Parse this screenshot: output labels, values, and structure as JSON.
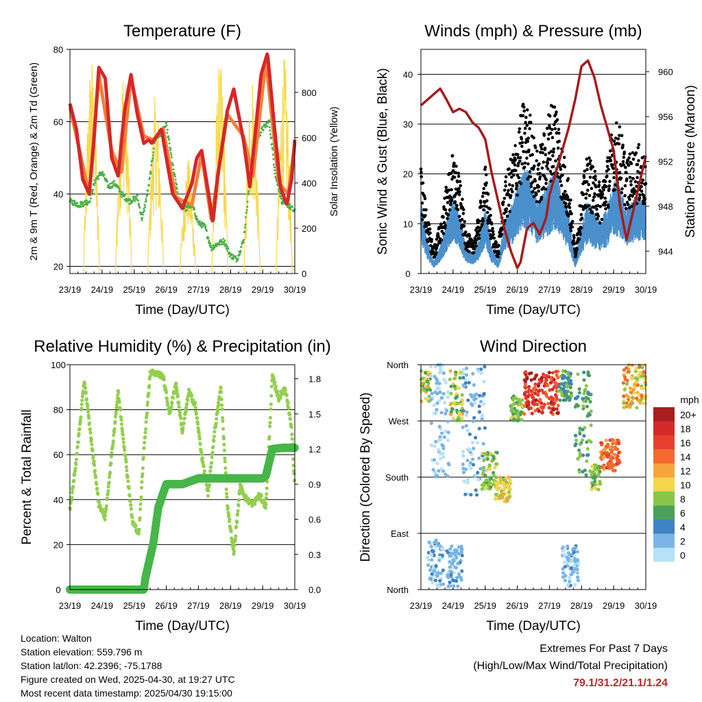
{
  "x_ticks": [
    "23/19",
    "24/19",
    "25/19",
    "26/19",
    "27/19",
    "28/19",
    "29/19",
    "30/19"
  ],
  "x_label": "Time (Day/UTC)",
  "colors": {
    "t2m": "#d62728",
    "t9m": "#f0813a",
    "td": "#4db04a",
    "solar": "#f6d94f",
    "wind": "#4a90cc",
    "gust": "#000000",
    "pressure": "#a51c1c",
    "rh": "#92cf4e",
    "precip": "#47b648"
  },
  "chart_data": [
    {
      "type": "line",
      "title": "Temperature (F)",
      "xlabel": "Time (Day/UTC)",
      "ylabel": "2m & 9m T (Red, Orange) & 2m Td (Green)",
      "y2label": "Solar Insolation (Yellow)",
      "ylim": [
        18,
        80
      ],
      "y2lim": [
        0,
        990
      ],
      "yticks": [
        20,
        40,
        60,
        80
      ],
      "y2ticks": [
        0,
        200,
        400,
        600,
        800
      ],
      "x_day_range": [
        23,
        30
      ],
      "grid": "horizontal",
      "series": [
        {
          "key": "t2m",
          "x": [
            23,
            23.2,
            23.4,
            23.6,
            23.75,
            23.9,
            24.1,
            24.3,
            24.5,
            24.7,
            24.9,
            25.1,
            25.3,
            25.45,
            25.55,
            25.7,
            25.85,
            26.0,
            26.2,
            26.5,
            26.8,
            26.95,
            27.1,
            27.3,
            27.45,
            27.6,
            27.9,
            28.1,
            28.4,
            28.6,
            28.75,
            28.95,
            29.15,
            29.35,
            29.55,
            29.75,
            29.9,
            30.0
          ],
          "y": [
            65,
            58,
            44,
            40,
            55,
            75,
            72,
            50,
            45,
            63,
            73,
            62,
            54,
            55,
            54,
            56,
            58,
            50,
            40,
            36,
            43,
            50,
            52,
            41,
            32,
            45,
            63,
            69,
            55,
            42,
            55,
            73,
            79,
            60,
            42,
            37,
            44,
            55
          ]
        },
        {
          "key": "t9m",
          "x": [
            23,
            23.3,
            23.6,
            23.9,
            24.3,
            24.6,
            24.9,
            25.3,
            25.6,
            25.9,
            26.3,
            26.8,
            27.1,
            27.4,
            27.9,
            28.4,
            28.7,
            29.1,
            29.5,
            29.8,
            30.0
          ],
          "y": [
            64,
            52,
            40,
            73,
            52,
            46,
            72,
            56,
            55,
            58,
            39,
            37,
            51,
            33,
            62,
            56,
            45,
            77,
            43,
            40,
            54
          ]
        },
        {
          "key": "td",
          "x": [
            23,
            23.3,
            23.6,
            23.8,
            24.0,
            24.2,
            24.4,
            24.6,
            24.85,
            25.1,
            25.25,
            25.45,
            25.65,
            25.85,
            26.0,
            26.2,
            26.4,
            26.6,
            26.8,
            27.0,
            27.2,
            27.4,
            27.55,
            27.8,
            28.0,
            28.2,
            28.4,
            28.6,
            28.8,
            29.0,
            29.2,
            29.4,
            29.6,
            29.8,
            30.0
          ],
          "y": [
            38,
            37,
            38,
            44,
            46,
            42,
            43,
            40,
            38,
            39,
            33,
            42,
            55,
            57,
            59,
            48,
            38,
            36,
            37,
            32,
            31,
            25,
            26,
            27,
            23,
            22,
            27,
            44,
            55,
            58,
            60,
            45,
            38,
            37,
            35
          ]
        },
        {
          "key": "solar",
          "peaks": [
            {
              "x": 23.7,
              "y": 980
            },
            {
              "x": 24.7,
              "y": 940
            },
            {
              "x": 25.7,
              "y": 790
            },
            {
              "x": 26.7,
              "y": 520
            },
            {
              "x": 27.7,
              "y": 940
            },
            {
              "x": 28.7,
              "y": 890
            },
            {
              "x": 29.7,
              "y": 960
            }
          ]
        }
      ]
    },
    {
      "type": "scatter",
      "title": "Winds (mph) & Pressure (mb)",
      "xlabel": "Time (Day/UTC)",
      "ylabel": "Sonic Wind & Gust (Blue, Black)",
      "y2label": "Station Pressure (Maroon)",
      "ylim": [
        0,
        45
      ],
      "y2lim": [
        942,
        962
      ],
      "yticks": [
        0,
        10,
        20,
        30,
        40
      ],
      "y2ticks": [
        944,
        948,
        952,
        956,
        960
      ],
      "x_day_range": [
        23,
        30
      ],
      "grid": "horizontal",
      "series": [
        {
          "key": "wind",
          "x": [
            23,
            23.2,
            23.4,
            23.6,
            23.8,
            24.0,
            24.2,
            24.4,
            24.6,
            24.8,
            25.0,
            25.2,
            25.4,
            25.6,
            25.8,
            26.0,
            26.2,
            26.4,
            26.6,
            26.8,
            27.0,
            27.2,
            27.4,
            27.6,
            27.8,
            28.0,
            28.2,
            28.4,
            28.6,
            28.8,
            29.0,
            29.2,
            29.4,
            29.6,
            29.8,
            30.0
          ],
          "y": [
            11,
            5,
            2,
            4,
            8,
            12,
            9,
            4,
            3,
            5,
            10,
            4,
            2,
            8,
            10,
            13,
            16,
            15,
            11,
            12,
            14,
            16,
            12,
            9,
            2,
            7,
            11,
            9,
            8,
            10,
            14,
            13,
            10,
            11,
            12,
            11
          ]
        },
        {
          "key": "gust",
          "x": [
            23,
            23.2,
            23.4,
            23.6,
            23.8,
            24.0,
            24.2,
            24.4,
            24.6,
            24.8,
            25.0,
            25.2,
            25.4,
            25.6,
            25.8,
            26.0,
            26.2,
            26.4,
            26.6,
            26.8,
            27.0,
            27.2,
            27.4,
            27.6,
            27.8,
            28.0,
            28.2,
            28.4,
            28.6,
            28.8,
            29.0,
            29.2,
            29.4,
            29.6,
            29.8,
            30.0
          ],
          "y": [
            17,
            9,
            4,
            8,
            14,
            19,
            15,
            7,
            5,
            9,
            17,
            8,
            4,
            14,
            18,
            22,
            27,
            25,
            19,
            21,
            26,
            28,
            20,
            15,
            4,
            13,
            19,
            16,
            14,
            18,
            24,
            23,
            18,
            19,
            20,
            18
          ]
        },
        {
          "key": "pressure",
          "x": [
            23,
            23.2,
            23.4,
            23.6,
            23.8,
            24.0,
            24.2,
            24.4,
            24.6,
            24.8,
            25.0,
            25.2,
            25.4,
            25.6,
            25.8,
            26.0,
            26.1,
            26.3,
            26.5,
            26.7,
            26.9,
            27.0,
            27.2,
            27.4,
            27.6,
            27.8,
            28.0,
            28.2,
            28.4,
            28.6,
            28.8,
            29.0,
            29.2,
            29.4,
            29.6,
            29.8,
            30.0
          ],
          "y": [
            957.0,
            957.5,
            958.0,
            958.5,
            957.5,
            956.4,
            956.7,
            956.4,
            955.5,
            955.0,
            954.0,
            951.0,
            948.5,
            946.0,
            944.0,
            942.5,
            943.0,
            946.0,
            946.5,
            945.5,
            947.0,
            949.0,
            951.0,
            953.0,
            955.0,
            957.5,
            960.5,
            961.0,
            959.5,
            957.0,
            955.0,
            953.0,
            948.0,
            945.0,
            947.5,
            950.0,
            952.5
          ]
        }
      ]
    },
    {
      "type": "line",
      "title": "Relative Humidity (%) & Precipitation (in)",
      "xlabel": "Time (Day/UTC)",
      "ylabel": "Percent & Total Rainfall",
      "ylim": [
        0,
        100
      ],
      "y2lim": [
        0,
        1.92
      ],
      "yticks": [
        0,
        20,
        40,
        60,
        80,
        100
      ],
      "y2ticks": [
        "0.0",
        "0.3",
        "0.6",
        "0.9",
        "1.2",
        "1.5",
        "1.8"
      ],
      "x_day_range": [
        23,
        30
      ],
      "grid": "horizontal",
      "series": [
        {
          "key": "rh",
          "x": [
            23,
            23.2,
            23.45,
            23.7,
            23.9,
            24.1,
            24.3,
            24.5,
            24.75,
            24.95,
            25.15,
            25.3,
            25.5,
            25.7,
            25.9,
            26.1,
            26.3,
            26.5,
            26.7,
            26.9,
            27.1,
            27.3,
            27.5,
            27.7,
            27.9,
            28.1,
            28.3,
            28.5,
            28.7,
            28.9,
            29.1,
            29.3,
            29.5,
            29.7,
            29.9,
            30.0
          ],
          "y": [
            35,
            58,
            93,
            62,
            38,
            32,
            60,
            88,
            56,
            30,
            25,
            62,
            97,
            96,
            95,
            78,
            92,
            70,
            88,
            82,
            60,
            42,
            70,
            90,
            38,
            16,
            46,
            40,
            38,
            42,
            37,
            95,
            85,
            90,
            72,
            45
          ]
        },
        {
          "key": "precip",
          "x": [
            23,
            25.3,
            25.35,
            25.6,
            25.75,
            25.85,
            26.0,
            26.5,
            26.8,
            27.0,
            29.0,
            29.1,
            29.3,
            29.6,
            30.0
          ],
          "y": [
            0,
            0,
            0.1,
            0.4,
            0.7,
            0.78,
            0.9,
            0.9,
            0.93,
            0.95,
            0.95,
            0.97,
            1.2,
            1.21,
            1.21
          ]
        }
      ]
    },
    {
      "type": "scatter",
      "title": "Wind Direction",
      "xlabel": "Time (Day/UTC)",
      "ylabel": "Direction (Colored By Speed)",
      "ylim": [
        0,
        360
      ],
      "yticks": [
        "North",
        "East",
        "South",
        "West",
        "North"
      ],
      "x_day_range": [
        23,
        30
      ],
      "grid": "horizontal",
      "legend": {
        "title": "mph",
        "position": "right",
        "labels": [
          "20+",
          "18",
          "16",
          "14",
          "12",
          "10",
          "8",
          "6",
          "4",
          "2",
          "0"
        ],
        "colors": [
          "#a71d20",
          "#d42a2a",
          "#e8402e",
          "#f26a2f",
          "#f6a53d",
          "#f3d64c",
          "#8ac648",
          "#4aa05a",
          "#3e83c4",
          "#7ab5e6",
          "#b7e1f7"
        ]
      },
      "clusters": [
        {
          "x": [
            23.0,
            23.3
          ],
          "dir": [
            300,
            350
          ],
          "speed": [
            6,
            12
          ]
        },
        {
          "x": [
            23.3,
            23.9
          ],
          "dir": [
            180,
            360
          ],
          "speed": [
            0,
            2
          ]
        },
        {
          "x": [
            23.2,
            23.7
          ],
          "dir": [
            5,
            80
          ],
          "speed": [
            0,
            4
          ]
        },
        {
          "x": [
            23.9,
            24.3
          ],
          "dir": [
            270,
            350
          ],
          "speed": [
            6,
            12
          ]
        },
        {
          "x": [
            23.8,
            24.3
          ],
          "dir": [
            5,
            70
          ],
          "speed": [
            0,
            4
          ]
        },
        {
          "x": [
            24.3,
            25.0
          ],
          "dir": [
            150,
            360
          ],
          "speed": [
            0,
            4
          ]
        },
        {
          "x": [
            24.9,
            25.4
          ],
          "dir": [
            160,
            220
          ],
          "speed": [
            6,
            10
          ]
        },
        {
          "x": [
            25.3,
            25.8
          ],
          "dir": [
            140,
            180
          ],
          "speed": [
            8,
            12
          ]
        },
        {
          "x": [
            25.8,
            26.2
          ],
          "dir": [
            270,
            310
          ],
          "speed": [
            6,
            10
          ]
        },
        {
          "x": [
            26.2,
            27.3
          ],
          "dir": [
            280,
            350
          ],
          "speed": [
            14,
            20
          ]
        },
        {
          "x": [
            27.3,
            27.7
          ],
          "dir": [
            300,
            350
          ],
          "speed": [
            4,
            8
          ]
        },
        {
          "x": [
            27.4,
            27.9
          ],
          "dir": [
            5,
            70
          ],
          "speed": [
            0,
            4
          ]
        },
        {
          "x": [
            27.8,
            28.3
          ],
          "dir": [
            180,
            350
          ],
          "speed": [
            4,
            8
          ]
        },
        {
          "x": [
            28.3,
            28.6
          ],
          "dir": [
            160,
            200
          ],
          "speed": [
            6,
            10
          ]
        },
        {
          "x": [
            28.6,
            29.2
          ],
          "dir": [
            190,
            240
          ],
          "speed": [
            12,
            16
          ]
        },
        {
          "x": [
            29.3,
            30.0
          ],
          "dir": [
            290,
            360
          ],
          "speed": [
            8,
            14
          ]
        }
      ]
    }
  ],
  "info": {
    "location": "Location: Walton",
    "elevation": "Station elevation: 559.796 m",
    "latlon": "Station lat/lon: 42.2396; -75.1788",
    "created": "Figure created on Wed, 2025-04-30, at 19:27 UTC",
    "recent": "Most recent data timestamp: 2025/04/30 19:15:00"
  },
  "extremes": {
    "title": "Extremes For Past 7 Days",
    "subtitle": "(High/Low/Max Wind/Total Precipitation)",
    "values": "79.1/31.2/21.1/1.24"
  }
}
